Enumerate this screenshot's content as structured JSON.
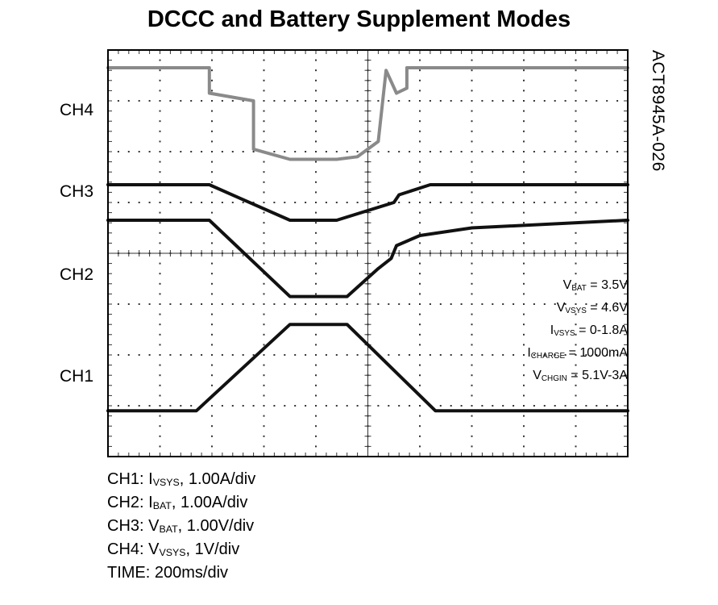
{
  "title": "DCCC and Battery Supplement Modes",
  "figure_id": "ACT8945A-026",
  "channel_labels": [
    "CH4",
    "CH3",
    "CH2",
    "CH1"
  ],
  "conditions": [
    {
      "sym": "V",
      "sub": "BAT",
      "rest": " = 3.5V"
    },
    {
      "sym": "V",
      "sub": "VSYS",
      "rest": " = 4.6V"
    },
    {
      "sym": "I",
      "sub": "VSYS",
      "rest": " = 0-1.8A"
    },
    {
      "sym": "I",
      "sub": "CHARGE",
      "rest": " = 1000mA"
    },
    {
      "sym": "V",
      "sub": "CHGIN",
      "rest": " = 5.1V-3A"
    }
  ],
  "legend": [
    {
      "pre": "CH1: I",
      "sub": "VSYS",
      "post": ", 1.00A/div"
    },
    {
      "pre": "CH2: I",
      "sub": "BAT",
      "post": ", 1.00A/div"
    },
    {
      "pre": "CH3: V",
      "sub": "BAT",
      "post": ", 1.00V/div"
    },
    {
      "pre": "CH4: V",
      "sub": "VSYS",
      "post": ", 1V/div"
    },
    {
      "pre": "TIME: 200ms/div",
      "sub": "",
      "post": ""
    }
  ],
  "colors": {
    "ch4": "#8a8a8a",
    "traces": "#111111",
    "grid": "#333333"
  },
  "chart_data": {
    "type": "line",
    "title": "DCCC and Battery Supplement Modes",
    "xlabel": "TIME: 200ms/div",
    "ylabel": "",
    "grid": true,
    "xlim": [
      0,
      10
    ],
    "ylim": [
      0,
      8
    ],
    "series": [
      {
        "name": "CH4",
        "x": [
          0,
          1.95,
          1.95,
          2.8,
          2.8,
          3.5,
          4.4,
          4.8,
          5.2,
          5.35,
          5.35,
          5.55,
          5.55,
          5.75,
          5.75,
          10
        ],
        "y": [
          7.65,
          7.65,
          7.15,
          7.0,
          6.05,
          5.85,
          5.85,
          5.9,
          6.2,
          7.6,
          7.6,
          7.15,
          7.15,
          7.25,
          7.65,
          7.65
        ]
      },
      {
        "name": "CH3",
        "x": [
          0,
          1.95,
          2.5,
          3.5,
          4.4,
          5.5,
          5.6,
          6.2,
          10
        ],
        "y": [
          5.35,
          5.35,
          5.1,
          4.65,
          4.65,
          5.0,
          5.15,
          5.35,
          5.35
        ]
      },
      {
        "name": "CH2",
        "x": [
          0,
          1.95,
          3.5,
          4.6,
          5.2,
          5.45,
          5.55,
          6.0,
          7.0,
          10
        ],
        "y": [
          4.65,
          4.65,
          3.15,
          3.15,
          3.7,
          3.9,
          4.15,
          4.35,
          4.5,
          4.65
        ]
      },
      {
        "name": "CH1",
        "x": [
          0,
          1.7,
          3.5,
          4.6,
          6.3,
          10
        ],
        "y": [
          0.9,
          0.9,
          2.6,
          2.6,
          0.9,
          0.9
        ]
      }
    ]
  }
}
